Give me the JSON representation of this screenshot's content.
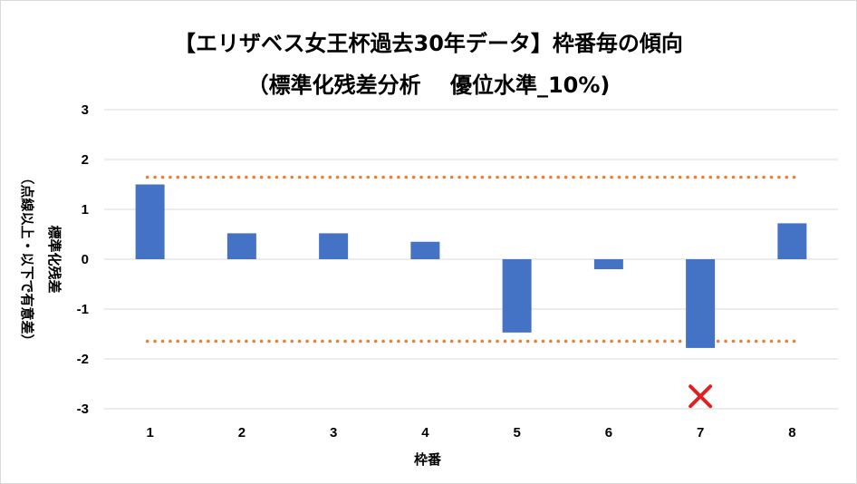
{
  "chart_data": {
    "type": "bar",
    "title": "【エリザベス女王杯過去30年データ】枠番毎の傾向",
    "subtitle": "（標準化残差分析　 優位水準_10%)",
    "xlabel": "枠番",
    "ylabel_primary": "標準化残差",
    "ylabel_secondary": "（点線以上・以下で有意差）",
    "categories": [
      "1",
      "2",
      "3",
      "4",
      "5",
      "6",
      "7",
      "8"
    ],
    "values": [
      1.5,
      0.52,
      0.52,
      0.35,
      -1.47,
      -0.2,
      -1.78,
      0.72
    ],
    "ylim": [
      -3,
      3
    ],
    "yticks": [
      3,
      2,
      1,
      0,
      -1,
      -2,
      -3
    ],
    "thresholds": [
      1.645,
      -1.645
    ],
    "marker": {
      "category": "7",
      "y": -2.75,
      "symbol": "×"
    },
    "bar_color": "#4472c4",
    "threshold_color": "#ed7d31",
    "marker_color": "#e02020",
    "gridline_color": "#d9d9d9",
    "grid": true,
    "legend": "none"
  }
}
